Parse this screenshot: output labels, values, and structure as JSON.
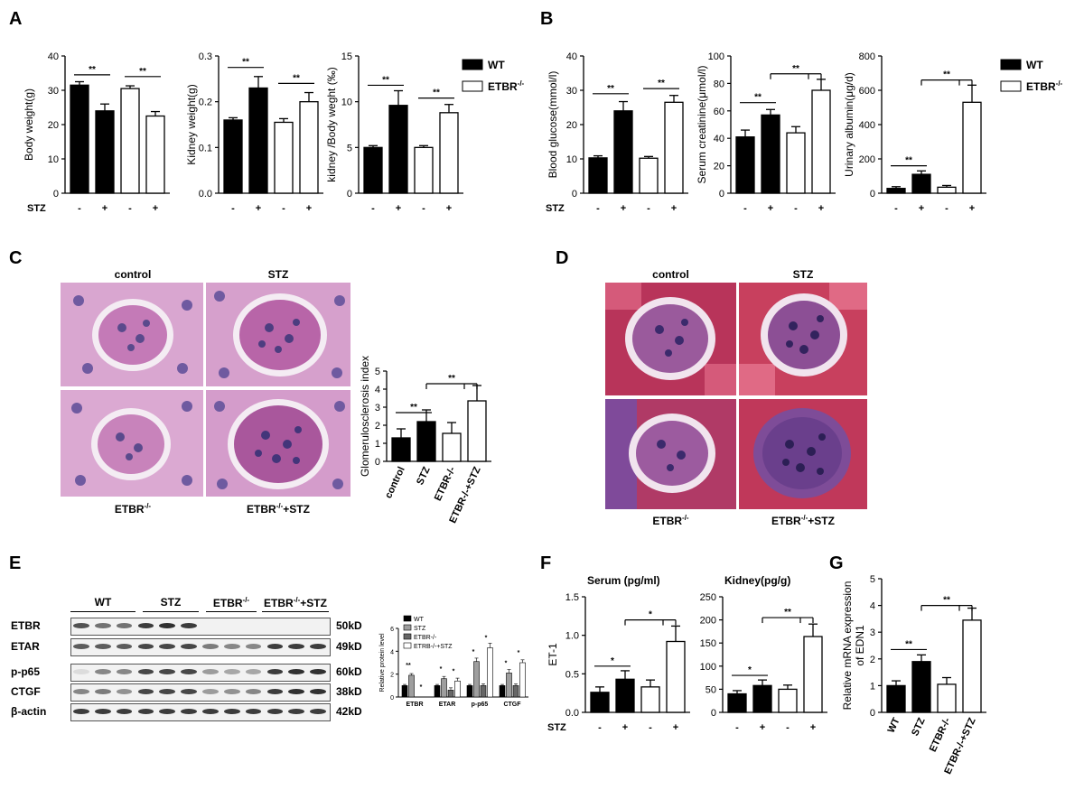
{
  "panels": {
    "A": "A",
    "B": "B",
    "C": "C",
    "D": "D",
    "E": "E",
    "F": "F",
    "G": "G"
  },
  "legend": {
    "wt": "WT",
    "etbr": "ETBR",
    "etbr_sup": "-/-"
  },
  "stz_label": "STZ",
  "significance": {
    "double": "**",
    "single": "*"
  },
  "micrographs": {
    "C": {
      "top_left": "control",
      "top_right": "STZ",
      "bottom_left": "ETBR",
      "bottom_left_sup": "-/-",
      "bottom_right": "ETBR",
      "bottom_right_sup": "-/-",
      "bottom_right_suffix": "+STZ"
    },
    "D": {
      "top_left": "control",
      "top_right": "STZ",
      "bottom_left": "ETBR",
      "bottom_left_sup": "-/-",
      "bottom_right": "ETBR",
      "bottom_right_sup": "-/-",
      "bottom_right_suffix": "+STZ"
    }
  },
  "western_blot": {
    "groups": [
      "WT",
      "STZ",
      "ETBR",
      "ETBR"
    ],
    "group_sups": [
      "",
      "",
      "-/-",
      "-/-"
    ],
    "group_suffixes": [
      "",
      "",
      "",
      "+STZ"
    ],
    "rows": [
      {
        "label": "ETBR",
        "size": "50kD",
        "levels": [
          0.75,
          0.6,
          0.6,
          0.85,
          0.9,
          0.85,
          0,
          0,
          0,
          0,
          0,
          0
        ]
      },
      {
        "label": "ETAR",
        "size": "49kD",
        "levels": [
          0.7,
          0.7,
          0.7,
          0.8,
          0.8,
          0.8,
          0.55,
          0.5,
          0.5,
          0.85,
          0.85,
          0.85
        ]
      },
      {
        "label": "p-p65",
        "size": "60kD",
        "levels": [
          0.1,
          0.5,
          0.5,
          0.8,
          0.8,
          0.8,
          0.4,
          0.35,
          0.35,
          0.85,
          0.9,
          0.9
        ]
      },
      {
        "label": "CTGF",
        "size": "38kD",
        "levels": [
          0.5,
          0.55,
          0.45,
          0.8,
          0.8,
          0.8,
          0.4,
          0.45,
          0.5,
          0.85,
          0.9,
          0.9
        ]
      },
      {
        "label": "β-actin",
        "size": "42kD",
        "levels": [
          0.85,
          0.85,
          0.85,
          0.85,
          0.85,
          0.85,
          0.85,
          0.85,
          0.85,
          0.85,
          0.85,
          0.85
        ]
      }
    ]
  },
  "chart_data": [
    {
      "id": "A1",
      "type": "bar",
      "ylabel": "Body weight(g)",
      "ylim": [
        0,
        40
      ],
      "yticks": [
        0,
        10,
        20,
        30,
        40
      ],
      "xlabels": [
        "-",
        "+",
        "-",
        "+"
      ],
      "show_stz": true,
      "values": [
        31.5,
        24,
        30.5,
        22.5
      ],
      "errors": [
        1,
        2,
        0.8,
        1.3
      ],
      "sig": [
        {
          "from": 0,
          "to": 1,
          "y": 34.5,
          "label": "**"
        },
        {
          "from": 2,
          "to": 3,
          "y": 34.0,
          "label": "**"
        }
      ]
    },
    {
      "id": "A2",
      "type": "bar",
      "ylabel": "Kidney weight(g)",
      "ylim": [
        0,
        0.3
      ],
      "yticks": [
        0.0,
        0.1,
        0.2,
        0.3
      ],
      "xlabels": [
        "-",
        "+",
        "-",
        "+"
      ],
      "show_stz": false,
      "values": [
        0.16,
        0.23,
        0.155,
        0.2
      ],
      "errors": [
        0.005,
        0.025,
        0.008,
        0.02
      ],
      "sig": [
        {
          "from": 0,
          "to": 1,
          "y": 0.275,
          "label": "**"
        },
        {
          "from": 2,
          "to": 3,
          "y": 0.24,
          "label": "**"
        }
      ]
    },
    {
      "id": "A3",
      "type": "bar",
      "ylabel": "kidney /Body weght (‰)",
      "ylim": [
        0,
        15
      ],
      "yticks": [
        0,
        5,
        10,
        15
      ],
      "xlabels": [
        "-",
        "+",
        "-",
        "+"
      ],
      "show_stz": false,
      "values": [
        5.0,
        9.6,
        5.0,
        8.8
      ],
      "errors": [
        0.2,
        1.6,
        0.2,
        0.9
      ],
      "sig": [
        {
          "from": 0,
          "to": 1,
          "y": 11.8,
          "label": "**"
        },
        {
          "from": 2,
          "to": 3,
          "y": 10.4,
          "label": "**"
        }
      ]
    },
    {
      "id": "B1",
      "type": "bar",
      "ylabel": "Blood glucose(mmol/l)",
      "ylim": [
        0,
        40
      ],
      "yticks": [
        0,
        10,
        20,
        30,
        40
      ],
      "xlabels": [
        "-",
        "+",
        "-",
        "+"
      ],
      "show_stz": true,
      "values": [
        10.3,
        24,
        10.2,
        26.5
      ],
      "errors": [
        0.6,
        2.7,
        0.5,
        2
      ],
      "sig": [
        {
          "from": 0,
          "to": 1,
          "y": 29,
          "label": "**"
        },
        {
          "from": 2,
          "to": 3,
          "y": 30.5,
          "label": "**"
        }
      ]
    },
    {
      "id": "B2",
      "type": "bar",
      "ylabel": "Serum creatinine(μmol/l)",
      "ylim": [
        0,
        100
      ],
      "yticks": [
        0,
        20,
        40,
        60,
        80,
        100
      ],
      "xlabels": [
        "-",
        "+",
        "-",
        "+"
      ],
      "show_stz": false,
      "values": [
        41,
        57,
        44,
        75
      ],
      "errors": [
        5,
        4,
        4.5,
        8
      ],
      "sig": [
        {
          "from": 0,
          "to": 1,
          "y": 66,
          "label": "**"
        },
        {
          "from": 1,
          "to": 3,
          "y": 87,
          "label": "**",
          "bracket": true
        }
      ]
    },
    {
      "id": "B3",
      "type": "bar",
      "ylabel": "Urinary albumin(μg/d)",
      "ylim": [
        0,
        800
      ],
      "yticks": [
        0,
        200,
        400,
        600,
        800
      ],
      "xlabels": [
        "-",
        "+",
        "-",
        "+"
      ],
      "show_stz": false,
      "values": [
        28,
        110,
        35,
        530
      ],
      "errors": [
        10,
        20,
        10,
        100
      ],
      "sig": [
        {
          "from": 0,
          "to": 1,
          "y": 160,
          "label": "**"
        },
        {
          "from": 1,
          "to": 3,
          "y": 660,
          "label": "**",
          "bracket": true
        }
      ]
    },
    {
      "id": "C",
      "type": "bar",
      "ylabel": "Glomerulosclerosis index",
      "ylim": [
        0,
        5
      ],
      "yticks": [
        0,
        1,
        2,
        3,
        4,
        5
      ],
      "xlabels": [
        "control",
        "STZ",
        "ETBR-/-",
        "ETBR-/-+STZ"
      ],
      "rotate_x": true,
      "show_stz": false,
      "values": [
        1.3,
        2.2,
        1.55,
        3.35
      ],
      "errors": [
        0.5,
        0.65,
        0.6,
        0.85
      ],
      "sig": [
        {
          "from": 0,
          "to": 1,
          "y": 2.7,
          "label": "**"
        },
        {
          "from": 1,
          "to": 3,
          "y": 4.3,
          "label": "**",
          "bracket": true
        }
      ]
    },
    {
      "id": "F1",
      "type": "bar",
      "title": "Serum (pg/ml)",
      "ylabel": "ET-1",
      "ylim": [
        0,
        1.5
      ],
      "yticks": [
        0.0,
        0.5,
        1.0,
        1.5
      ],
      "xlabels": [
        "-",
        "+",
        "-",
        "+"
      ],
      "show_stz": true,
      "values": [
        0.26,
        0.43,
        0.33,
        0.92
      ],
      "errors": [
        0.07,
        0.11,
        0.09,
        0.2
      ],
      "sig": [
        {
          "from": 0,
          "to": 1,
          "y": 0.6,
          "label": "*"
        },
        {
          "from": 1,
          "to": 3,
          "y": 1.2,
          "label": "*",
          "bracket": true
        }
      ]
    },
    {
      "id": "F2",
      "type": "bar",
      "title": "Kidney(pg/g)",
      "ylabel": "",
      "ylim": [
        0,
        250
      ],
      "yticks": [
        0,
        50,
        100,
        150,
        200,
        250
      ],
      "xlabels": [
        "-",
        "+",
        "-",
        "+"
      ],
      "show_stz": false,
      "values": [
        40,
        58,
        50,
        164
      ],
      "errors": [
        7,
        12,
        9,
        27
      ],
      "sig": [
        {
          "from": 0,
          "to": 1,
          "y": 80,
          "label": "*"
        },
        {
          "from": 1,
          "to": 3,
          "y": 205,
          "label": "**",
          "bracket": true
        }
      ]
    },
    {
      "id": "G",
      "type": "bar",
      "ylabel": "Relative mRNA expression of EDN1",
      "ylim": [
        0,
        5
      ],
      "yticks": [
        0,
        1,
        2,
        3,
        4,
        5
      ],
      "xlabels": [
        "WT",
        "STZ",
        "ETBR-/-",
        "ETBR-/-+STZ"
      ],
      "rotate_x": true,
      "show_stz": false,
      "values": [
        1.0,
        1.9,
        1.05,
        3.45
      ],
      "errors": [
        0.18,
        0.25,
        0.25,
        0.45
      ],
      "sig": [
        {
          "from": 0,
          "to": 1,
          "y": 2.35,
          "label": "**"
        },
        {
          "from": 1,
          "to": 3,
          "y": 4.0,
          "label": "**",
          "bracket": true
        }
      ]
    },
    {
      "id": "E",
      "type": "bar",
      "ylabel": "Relative protein level",
      "ylim": [
        0,
        6
      ],
      "yticks": [
        0,
        2,
        4,
        6
      ],
      "categories": [
        "ETBR",
        "ETAR",
        "p-p65",
        "CTGF"
      ],
      "legend": [
        "WT",
        "STZ",
        "ETBR-/-",
        "ETRB-/-+STZ"
      ],
      "series": [
        {
          "name": "WT",
          "values": [
            1.0,
            1.0,
            1.0,
            1.0
          ],
          "color": "#000000"
        },
        {
          "name": "STZ",
          "values": [
            1.9,
            1.6,
            3.1,
            2.1
          ],
          "color": "#9e9e9e"
        },
        {
          "name": "ETBR-/-",
          "values": [
            0.0,
            0.6,
            1.0,
            1.0
          ],
          "color": "#666666"
        },
        {
          "name": "ETRB-/-+STZ",
          "values": [
            0.0,
            1.4,
            4.3,
            3.0
          ],
          "color": "#ffffff"
        }
      ],
      "errors": [
        [
          0.1,
          0.1,
          0.1,
          0.1
        ],
        [
          0.15,
          0.2,
          0.3,
          0.3
        ],
        [
          0.0,
          0.2,
          0.15,
          0.15
        ],
        [
          0.0,
          0.25,
          0.4,
          0.25
        ]
      ],
      "sig_labels": [
        "**",
        "*",
        "*",
        "*",
        "*",
        "*",
        "*",
        "*"
      ]
    }
  ]
}
